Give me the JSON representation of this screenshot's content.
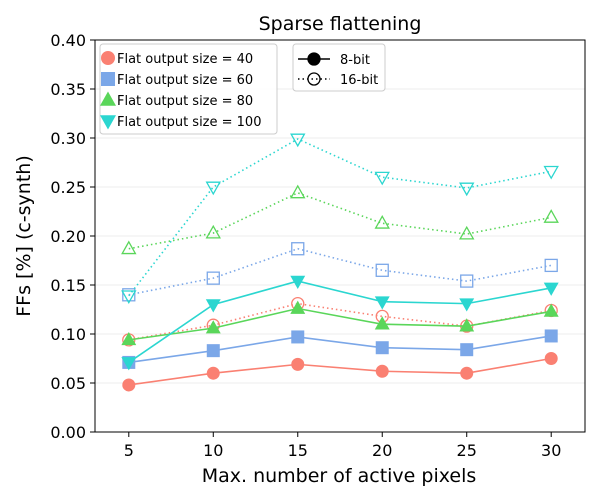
{
  "chart_data": {
    "type": "line",
    "title": "Sparse flattening",
    "xlabel": "Max. number of active pixels",
    "ylabel": "FFs [%] (c-synth)",
    "x": [
      5,
      10,
      15,
      20,
      25,
      30
    ],
    "xlim": [
      3,
      32
    ],
    "ylim": [
      0,
      0.4
    ],
    "yticks": [
      "0.00",
      "0.05",
      "0.10",
      "0.15",
      "0.20",
      "0.25",
      "0.30",
      "0.35",
      "0.40"
    ],
    "xticks": [
      "5",
      "10",
      "15",
      "20",
      "25",
      "30"
    ],
    "grid": "horizontal",
    "series": [
      {
        "name": "Flat output size = 40",
        "color": "#fa8072",
        "marker": "circle",
        "bits": "8-bit",
        "values": [
          0.048,
          0.06,
          0.069,
          0.062,
          0.06,
          0.075
        ]
      },
      {
        "name": "Flat output size = 40",
        "color": "#fa8072",
        "marker": "circle",
        "bits": "16-bit",
        "values": [
          0.094,
          0.109,
          0.131,
          0.118,
          0.108,
          0.124
        ]
      },
      {
        "name": "Flat output size = 60",
        "color": "#7ba7e8",
        "marker": "square",
        "bits": "8-bit",
        "values": [
          0.071,
          0.083,
          0.097,
          0.086,
          0.084,
          0.098
        ]
      },
      {
        "name": "Flat output size = 60",
        "color": "#7ba7e8",
        "marker": "square",
        "bits": "16-bit",
        "values": [
          0.14,
          0.157,
          0.187,
          0.165,
          0.154,
          0.17
        ]
      },
      {
        "name": "Flat output size = 80",
        "color": "#5ad65a",
        "marker": "triangle-up",
        "bits": "8-bit",
        "values": [
          0.094,
          0.106,
          0.126,
          0.11,
          0.108,
          0.123
        ]
      },
      {
        "name": "Flat output size = 80",
        "color": "#5ad65a",
        "marker": "triangle-up",
        "bits": "16-bit",
        "values": [
          0.187,
          0.203,
          0.244,
          0.213,
          0.202,
          0.219
        ]
      },
      {
        "name": "Flat output size = 100",
        "color": "#2bd6d0",
        "marker": "triangle-down",
        "bits": "8-bit",
        "values": [
          0.071,
          0.13,
          0.154,
          0.133,
          0.131,
          0.147
        ]
      },
      {
        "name": "Flat output size = 100",
        "color": "#2bd6d0",
        "marker": "triangle-down",
        "bits": "16-bit",
        "values": [
          0.139,
          0.25,
          0.299,
          0.26,
          0.249,
          0.266
        ]
      }
    ],
    "legend_sizes": {
      "location": "top-left",
      "entries": [
        {
          "label": "Flat output size = 40",
          "color": "#fa8072",
          "marker": "circle"
        },
        {
          "label": "Flat output size = 60",
          "color": "#7ba7e8",
          "marker": "square"
        },
        {
          "label": "Flat output size = 80",
          "color": "#5ad65a",
          "marker": "triangle-up"
        },
        {
          "label": "Flat output size = 100",
          "color": "#2bd6d0",
          "marker": "triangle-down"
        }
      ]
    },
    "legend_bits": {
      "location": "top-center",
      "entries": [
        {
          "label": "8-bit",
          "style": "solid",
          "fill": "filled"
        },
        {
          "label": "16-bit",
          "style": "dotted",
          "fill": "hollow"
        }
      ]
    }
  }
}
